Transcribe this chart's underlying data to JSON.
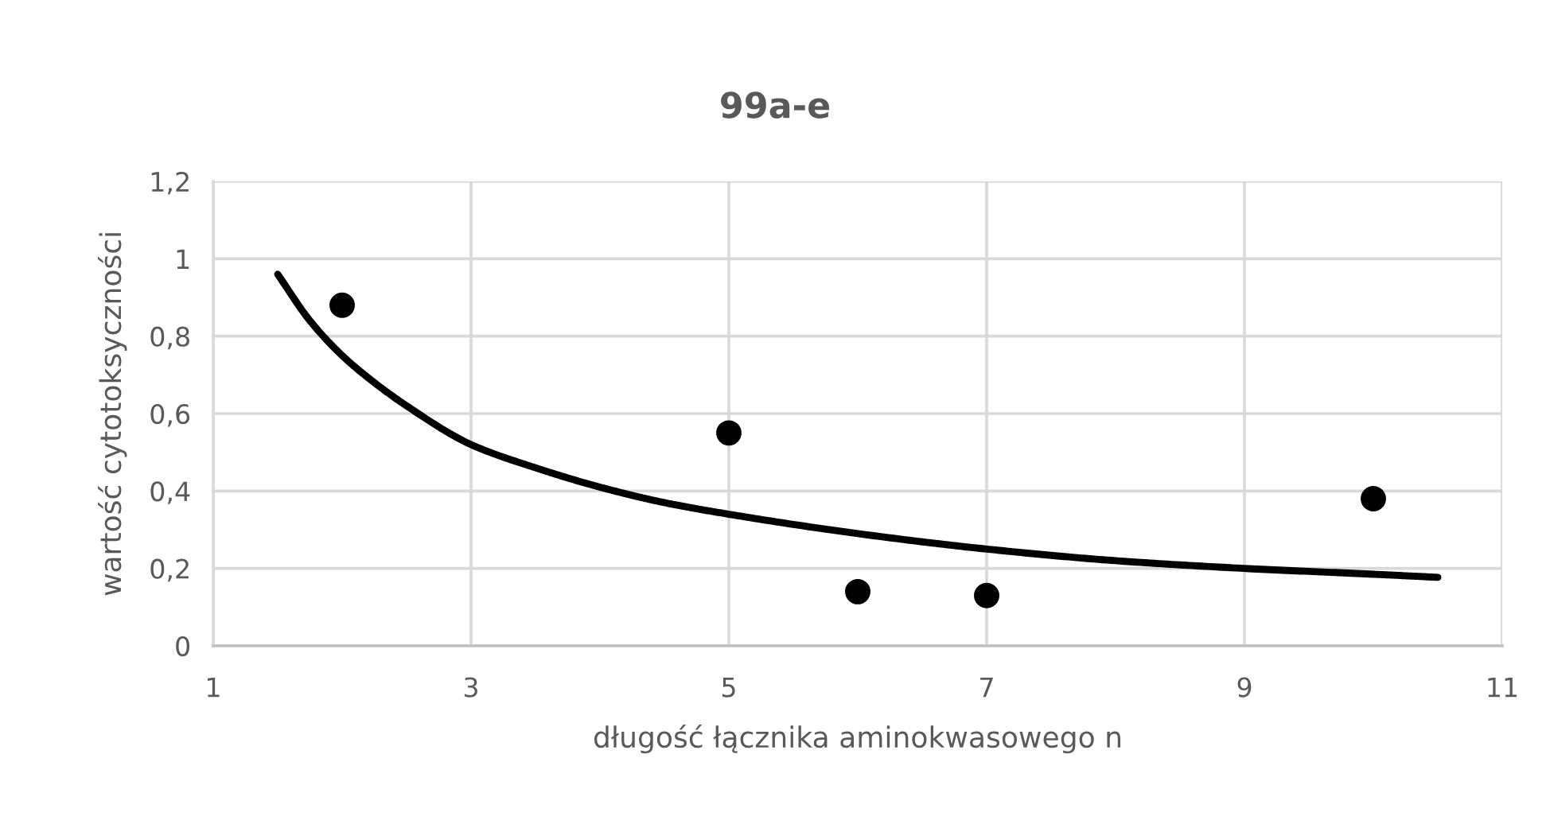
{
  "chart_data": {
    "type": "scatter",
    "title": "99a-e",
    "xlabel": "długość łącznika aminokwasowego n",
    "ylabel": "wartość cytotoksyczności",
    "series": [
      {
        "color": "#000000",
        "marker": "circle",
        "x": [
          2,
          5,
          6,
          7,
          10
        ],
        "values": [
          0.88,
          0.55,
          0.14,
          0.13,
          0.38
        ]
      },
      {
        "type": "line",
        "color": "#000000",
        "marker": "none",
        "line_style": "solid",
        "x": [
          1.5,
          1.75,
          2,
          2.25,
          2.5,
          3,
          3.5,
          4,
          4.5,
          5,
          6,
          7,
          8,
          9,
          10,
          10.5
        ],
        "values": [
          0.96,
          0.84,
          0.75,
          0.68,
          0.62,
          0.52,
          0.46,
          0.41,
          0.37,
          0.34,
          0.29,
          0.25,
          0.22,
          0.2,
          0.185,
          0.177
        ]
      }
    ],
    "xlim": [
      1,
      11
    ],
    "xticks": [
      1,
      3,
      5,
      7,
      9,
      11
    ],
    "ylim": [
      0,
      1.2
    ],
    "yticks": [
      0,
      {
        "value": 0.2,
        "label": "0,2"
      },
      {
        "value": 0.4,
        "label": "0,4"
      },
      {
        "value": 0.6,
        "label": "0,6"
      },
      {
        "value": 0.8,
        "label": "0,8"
      },
      1,
      {
        "value": 1.2,
        "label": "1,2"
      }
    ],
    "grid": true
  }
}
